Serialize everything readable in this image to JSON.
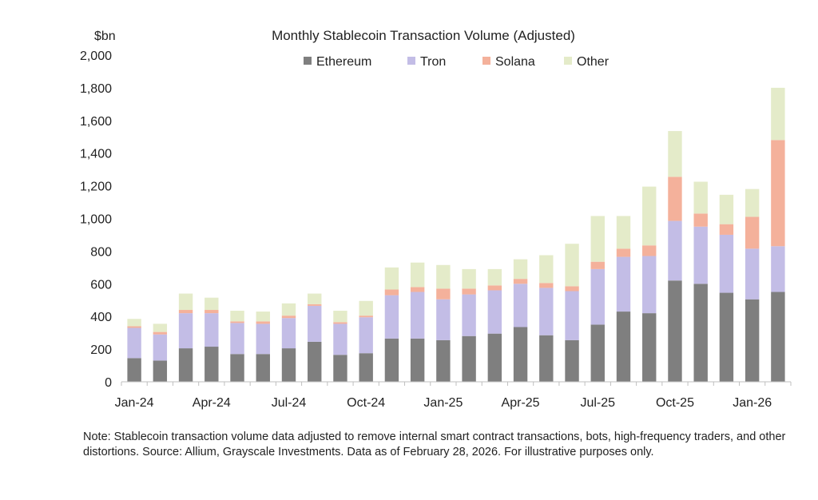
{
  "chart_data": {
    "type": "bar",
    "stacked": true,
    "title": "Monthly Stablecoin Transaction Volume (Adjusted)",
    "ylabel": "$bn",
    "xlabel": "",
    "ylim": [
      0,
      2000
    ],
    "yticks": [
      0,
      200,
      400,
      600,
      800,
      1000,
      1200,
      1400,
      1600,
      1800,
      2000
    ],
    "ytick_labels": [
      "0",
      "200",
      "400",
      "600",
      "800",
      "1,000",
      "1,200",
      "1,400",
      "1,600",
      "1,800",
      "2,000"
    ],
    "legend_position": "top-center",
    "categories": [
      "Jan-24",
      "Feb-24",
      "Mar-24",
      "Apr-24",
      "May-24",
      "Jun-24",
      "Jul-24",
      "Aug-24",
      "Sep-24",
      "Oct-24",
      "Nov-24",
      "Dec-24",
      "Jan-25",
      "Feb-25",
      "Mar-25",
      "Apr-25",
      "May-25",
      "Jun-25",
      "Jul-25",
      "Aug-25",
      "Sep-25",
      "Oct-25",
      "Nov-25",
      "Dec-25",
      "Jan-26",
      "Feb-26"
    ],
    "xtick_labels": [
      {
        "index": 0,
        "label": "Jan-24"
      },
      {
        "index": 3,
        "label": "Apr-24"
      },
      {
        "index": 6,
        "label": "Jul-24"
      },
      {
        "index": 9,
        "label": "Oct-24"
      },
      {
        "index": 12,
        "label": "Jan-25"
      },
      {
        "index": 15,
        "label": "Apr-25"
      },
      {
        "index": 18,
        "label": "Jul-25"
      },
      {
        "index": 21,
        "label": "Oct-25"
      },
      {
        "index": 24,
        "label": "Jan-26"
      }
    ],
    "series": [
      {
        "name": "Ethereum",
        "color": "#7f7f7f",
        "values": [
          145,
          130,
          205,
          215,
          170,
          170,
          205,
          245,
          165,
          175,
          265,
          265,
          255,
          280,
          295,
          335,
          285,
          255,
          350,
          430,
          420,
          620,
          600,
          545,
          505,
          550
        ]
      },
      {
        "name": "Tron",
        "color": "#c3bde6",
        "values": [
          185,
          160,
          215,
          205,
          190,
          185,
          185,
          220,
          190,
          220,
          265,
          285,
          250,
          255,
          265,
          265,
          290,
          300,
          340,
          335,
          350,
          365,
          350,
          355,
          310,
          280
        ]
      },
      {
        "name": "Solana",
        "color": "#f4b19b",
        "values": [
          10,
          15,
          20,
          20,
          10,
          15,
          15,
          10,
          10,
          10,
          35,
          30,
          65,
          35,
          30,
          30,
          30,
          30,
          45,
          50,
          65,
          270,
          80,
          65,
          195,
          650
        ]
      },
      {
        "name": "Other",
        "color": "#e4ebc9",
        "values": [
          45,
          50,
          100,
          75,
          65,
          60,
          75,
          65,
          70,
          90,
          135,
          150,
          145,
          120,
          100,
          120,
          170,
          260,
          280,
          200,
          360,
          280,
          195,
          180,
          170,
          320
        ]
      }
    ]
  },
  "footnote": "Note: Stablecoin transaction volume data adjusted to remove internal smart contract transactions, bots, high-frequency traders, and other distortions. Source: Allium, Grayscale Investments. Data as of February 28, 2026. For illustrative purposes only."
}
